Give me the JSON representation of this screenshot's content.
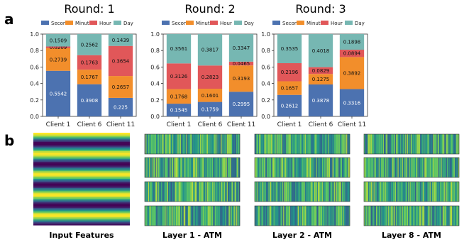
{
  "panel_labels": [
    "a",
    "b"
  ],
  "colors": {
    "Second": "#4c72b0",
    "Minute": "#f28e2b",
    "Hour": "#e15759",
    "Day": "#76b7b2"
  },
  "chart_data": [
    {
      "type": "bar",
      "stacked": true,
      "title": "Round: 1",
      "categories": [
        "Client 1",
        "Client 6",
        "Client 11"
      ],
      "series": [
        {
          "name": "Second",
          "values": [
            0.5542,
            0.3908,
            0.225
          ]
        },
        {
          "name": "Minute",
          "values": [
            0.2739,
            0.1767,
            0.2657
          ]
        },
        {
          "name": "Hour",
          "values": [
            0.0209,
            0.1763,
            0.3654
          ]
        },
        {
          "name": "Day",
          "values": [
            0.1509,
            0.2562,
            0.1439
          ]
        }
      ],
      "ylim": [
        0,
        1.0
      ],
      "yticks": [
        "0.0",
        "0.2",
        "0.4",
        "0.6",
        "0.8",
        "1.0"
      ],
      "legend": "top"
    },
    {
      "type": "bar",
      "stacked": true,
      "title": "Round: 2",
      "categories": [
        "Client 1",
        "Client 6",
        "Client 11"
      ],
      "series": [
        {
          "name": "Second",
          "values": [
            0.1545,
            0.1759,
            0.2995
          ]
        },
        {
          "name": "Minute",
          "values": [
            0.1768,
            0.1601,
            0.3193
          ]
        },
        {
          "name": "Hour",
          "values": [
            0.3126,
            0.2823,
            0.0465
          ]
        },
        {
          "name": "Day",
          "values": [
            0.3561,
            0.3817,
            0.3347
          ]
        }
      ],
      "ylim": [
        0,
        1.0
      ],
      "yticks": [
        "0.0",
        "0.2",
        "0.4",
        "0.6",
        "0.8",
        "1.0"
      ],
      "legend": "top"
    },
    {
      "type": "bar",
      "stacked": true,
      "title": "Round: 3",
      "categories": [
        "Client 1",
        "Client 6",
        "Client 11"
      ],
      "series": [
        {
          "name": "Second",
          "values": [
            0.2612,
            0.3878,
            0.3316
          ]
        },
        {
          "name": "Minute",
          "values": [
            0.1657,
            0.1275,
            0.3892
          ]
        },
        {
          "name": "Hour",
          "values": [
            0.2196,
            0.0829,
            0.0894
          ]
        },
        {
          "name": "Day",
          "values": [
            0.3535,
            0.4018,
            0.1898
          ]
        }
      ],
      "ylim": [
        0,
        1.0
      ],
      "yticks": [
        "0.0",
        "0.2",
        "0.4",
        "0.6",
        "0.8",
        "1.0"
      ],
      "legend": "top"
    },
    {
      "type": "heatmap",
      "label": "Input Features",
      "pattern": "horizontal sinusoidal bands",
      "colormap": "viridis"
    },
    {
      "type": "heatmap",
      "label": "Layer 1 - ATM",
      "rows": 4,
      "pattern": "vertical stripes",
      "colormap": "viridis"
    },
    {
      "type": "heatmap",
      "label": "Layer 2 - ATM",
      "rows": 4,
      "pattern": "vertical stripes",
      "colormap": "viridis"
    },
    {
      "type": "heatmap",
      "label": "Layer 8 - ATM",
      "rows": 4,
      "pattern": "vertical stripes",
      "colormap": "viridis"
    }
  ]
}
